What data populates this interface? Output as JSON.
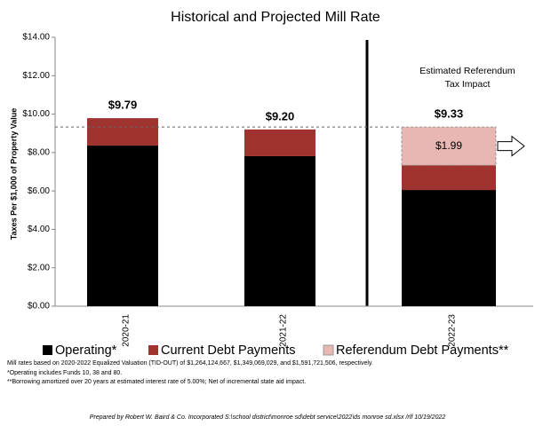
{
  "chart_data": {
    "type": "stacked_bar",
    "title": "Historical and Projected Mill Rate",
    "y_label": "Taxes Per $1,000 of Property Value",
    "categories": [
      "2020-21",
      "2021-22",
      "2022-23"
    ],
    "series": [
      {
        "name": "Operating*",
        "color": "#000000",
        "values": [
          8.36,
          7.81,
          6.05
        ]
      },
      {
        "name": "Current Debt Payments",
        "color": "#a0332f",
        "values": [
          1.43,
          1.39,
          1.29
        ]
      },
      {
        "name": "Referendum Debt Payments**",
        "color": "#e8b7b4",
        "values": [
          null,
          null,
          1.99
        ],
        "value_labels": [
          null,
          null,
          "$1.99"
        ]
      }
    ],
    "totals": {
      "values": [
        9.79,
        9.2,
        9.33
      ],
      "value_labels": [
        "$9.79",
        "$9.20",
        "$9.33"
      ]
    },
    "annotation": "Estimated Referendum Tax Impact",
    "ylim": [
      0,
      14
    ],
    "yticks": [
      {
        "value": 0,
        "label": "$0.00"
      },
      {
        "value": 2,
        "label": "$2.00"
      },
      {
        "value": 4,
        "label": "$4.00"
      },
      {
        "value": 6,
        "label": "$6.00"
      },
      {
        "value": 8,
        "label": "$8.00"
      },
      {
        "value": 10,
        "label": "$10.00"
      },
      {
        "value": 12,
        "label": "$12.00"
      },
      {
        "value": 14,
        "label": "$14.00"
      }
    ],
    "grid": false,
    "footnotes": [
      "Mill rates based on 2020-2022 Equalized Valuation (TID-OUT) of $1,264,124,667, $1,349,069,029, and $1,591,721,506, respectively.",
      "*Operating includes Funds 10, 38 and 80.",
      "**Borrowing amortized over 20 years at estimated interest rate of 5.00%; Net of incremental state aid impact."
    ],
    "prepared_by": "Prepared by Robert W. Baird & Co. Incorporated S:\\school district\\monroe sd\\debt service\\2022\\ds monroe sd.xlsx /rlf 10/19/2022"
  }
}
